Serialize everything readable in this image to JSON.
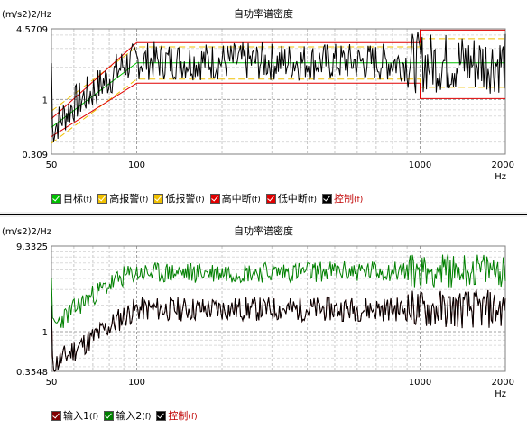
{
  "chart_data": [
    {
      "type": "line",
      "title": "自功率谱密度",
      "ylabel": "(m/s2)2/Hz",
      "xlabel": "Hz",
      "x_scale": "log",
      "y_scale": "log",
      "xlim": [
        50,
        2000
      ],
      "ylim": [
        0.309,
        4.5709
      ],
      "x_ticks": [
        "50",
        "100",
        "1000",
        "2000"
      ],
      "y_ticks": [
        "4.5709",
        "1",
        "0.309"
      ],
      "grid": true,
      "series": [
        {
          "name": "目标",
          "suffix": "(f)",
          "color": "#00c000",
          "x": [
            50,
            100,
            1000,
            1000,
            2000
          ],
          "y": [
            0.55,
            2.2,
            2.2,
            2.2,
            2.2
          ]
        },
        {
          "name": "高报警",
          "suffix": "(f)",
          "color": "#f0c000",
          "dashed": true,
          "x": [
            50,
            100,
            1000,
            1000,
            2000
          ],
          "y": [
            0.78,
            3.1,
            3.1,
            3.7,
            3.7
          ]
        },
        {
          "name": "低报警",
          "suffix": "(f)",
          "color": "#f0c000",
          "dashed": true,
          "x": [
            50,
            100,
            1000,
            1000,
            2000
          ],
          "y": [
            0.39,
            1.55,
            1.55,
            1.3,
            1.3
          ]
        },
        {
          "name": "高中断",
          "suffix": "(f)",
          "color": "#e00000",
          "x": [
            50,
            100,
            1000,
            1000,
            2000
          ],
          "y": [
            0.66,
            3.4,
            3.4,
            4.45,
            4.45
          ]
        },
        {
          "name": "低中断",
          "suffix": "(f)",
          "color": "#e00000",
          "x": [
            50,
            100,
            1000,
            1000,
            2000
          ],
          "y": [
            0.45,
            1.42,
            1.42,
            1.02,
            1.02
          ]
        },
        {
          "name": "控制",
          "suffix": "(f)",
          "color": "#000000",
          "noisy": true,
          "x": [
            50,
            60,
            70,
            80,
            90,
            100,
            2000
          ],
          "y": [
            0.52,
            0.9,
            1.2,
            1.6,
            2.1,
            2.3,
            2.2
          ],
          "noise": 0.18,
          "seed": 7
        }
      ]
    },
    {
      "type": "line",
      "title": "自功率谱密度",
      "ylabel": "(m/s2)2/Hz",
      "xlabel": "Hz",
      "x_scale": "log",
      "y_scale": "log",
      "xlim": [
        50,
        2000
      ],
      "ylim": [
        0.3548,
        9.3325
      ],
      "x_ticks": [
        "50",
        "100",
        "1000",
        "2000"
      ],
      "y_ticks": [
        "9.3325",
        "1",
        "0.3548"
      ],
      "grid": true,
      "series": [
        {
          "name": "输入1",
          "suffix": "(f)",
          "color": "#800000",
          "noisy": true,
          "x": [
            50,
            60,
            70,
            80,
            90,
            100,
            2000
          ],
          "y": [
            0.4,
            0.62,
            0.85,
            1.15,
            1.5,
            1.8,
            1.8
          ],
          "noise": 0.14,
          "seed": 11
        },
        {
          "name": "输入2",
          "suffix": "(f)",
          "color": "#008000",
          "noisy": true,
          "x": [
            50,
            60,
            70,
            80,
            90,
            100,
            2000
          ],
          "y": [
            1.1,
            1.8,
            2.6,
            3.4,
            4.2,
            4.6,
            5.0
          ],
          "noise": 0.12,
          "seed": 23
        },
        {
          "name": "控制",
          "suffix": "(f)",
          "color": "#000000",
          "noisy": true,
          "x": [
            50,
            60,
            70,
            80,
            90,
            100,
            2000
          ],
          "y": [
            0.4,
            0.62,
            0.85,
            1.15,
            1.5,
            1.8,
            1.8
          ],
          "noise": 0.14,
          "seed": 11
        }
      ]
    }
  ]
}
